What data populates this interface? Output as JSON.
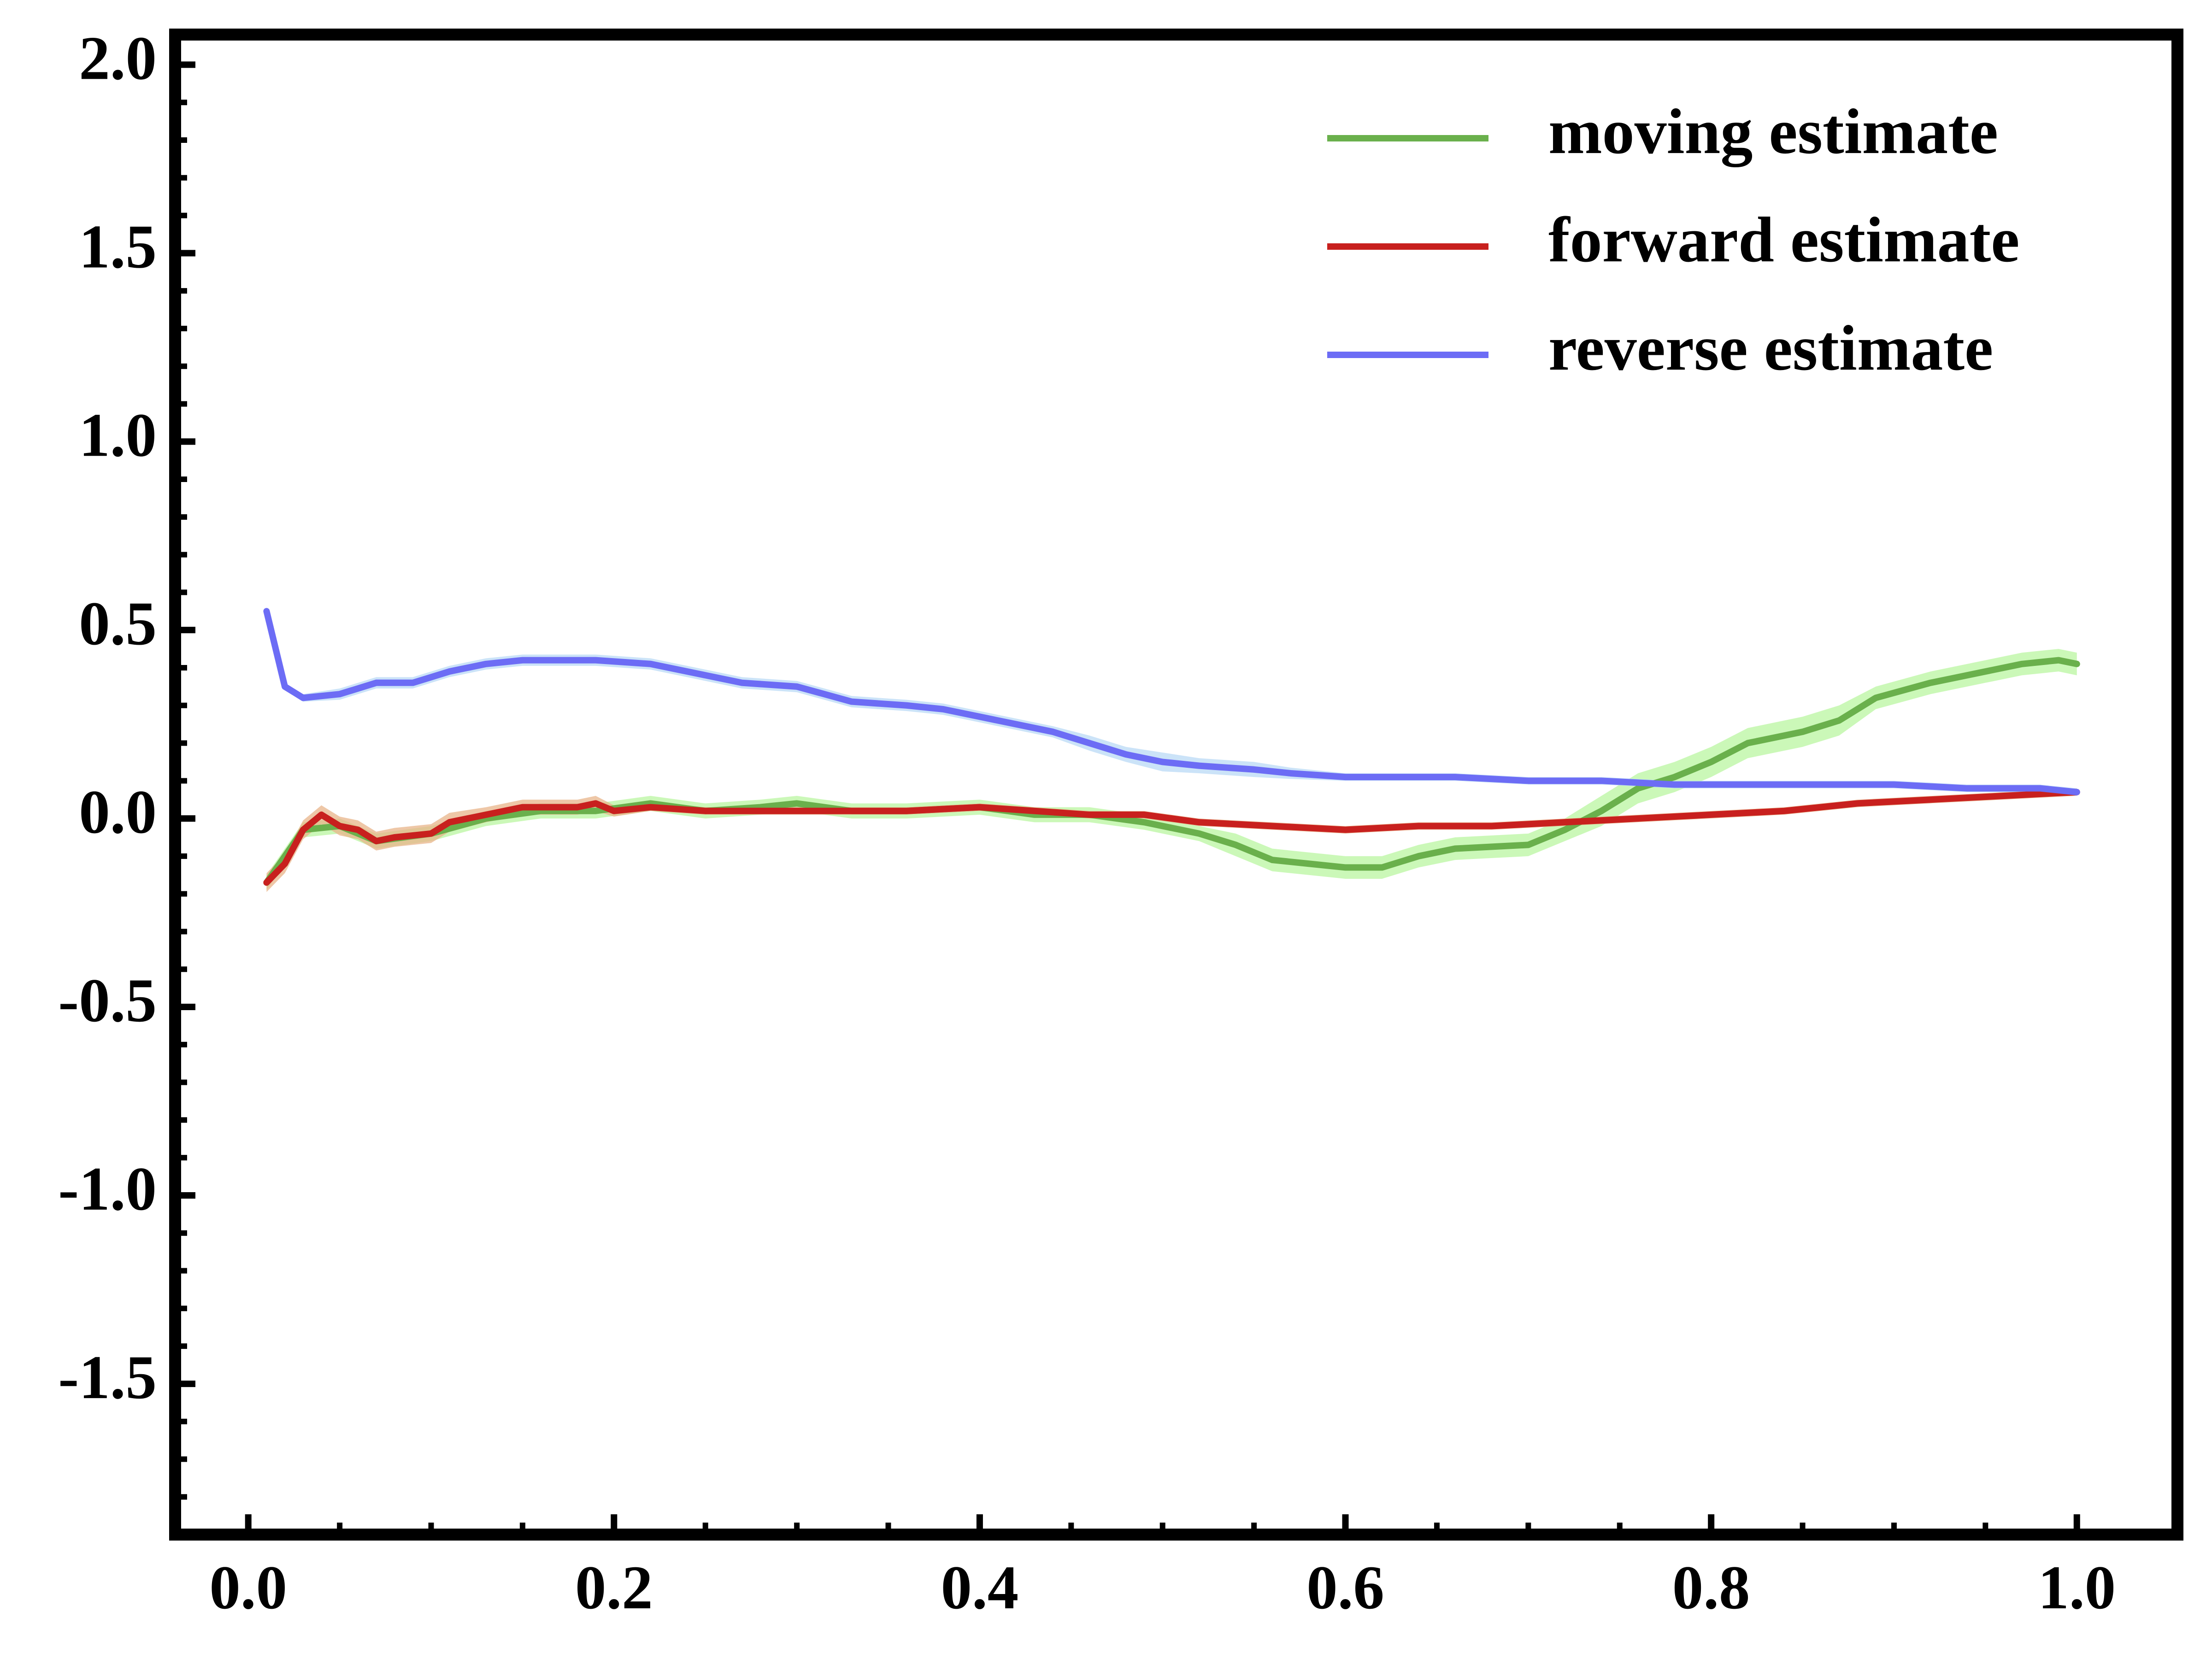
{
  "chart_data": {
    "type": "line",
    "title": "",
    "xlabel": "",
    "ylabel": "",
    "xlim": [
      -0.04,
      1.055
    ],
    "ylim": [
      -1.9,
      2.08
    ],
    "x_ticks": [
      0.0,
      0.2,
      0.4,
      0.6,
      0.8,
      1.0
    ],
    "x_tick_labels": [
      "0.0",
      "0.2",
      "0.4",
      "0.6",
      "0.8",
      "1.0"
    ],
    "y_ticks": [
      2.0,
      1.5,
      1.0,
      0.5,
      0.0,
      -0.5,
      -1.0,
      -1.5
    ],
    "y_tick_labels": [
      "2.0",
      "1.5",
      "1.0",
      "0.5",
      "0.0",
      "-0.5",
      "-1.0",
      "-1.5"
    ],
    "grid": false,
    "legend_position": "top-right",
    "series": [
      {
        "name": "moving estimate",
        "color": "#6ab04c",
        "band_color": "#b9f5a0",
        "x": [
          0.01,
          0.03,
          0.05,
          0.07,
          0.1,
          0.13,
          0.16,
          0.19,
          0.22,
          0.25,
          0.28,
          0.3,
          0.33,
          0.36,
          0.4,
          0.43,
          0.46,
          0.49,
          0.52,
          0.54,
          0.56,
          0.58,
          0.6,
          0.62,
          0.64,
          0.66,
          0.7,
          0.72,
          0.74,
          0.76,
          0.78,
          0.8,
          0.82,
          0.85,
          0.87,
          0.89,
          0.92,
          0.95,
          0.97,
          0.99,
          1.0
        ],
        "y": [
          -0.17,
          -0.03,
          -0.02,
          -0.06,
          -0.04,
          0.0,
          0.02,
          0.02,
          0.04,
          0.02,
          0.03,
          0.04,
          0.02,
          0.02,
          0.03,
          0.01,
          0.01,
          -0.01,
          -0.04,
          -0.07,
          -0.11,
          -0.12,
          -0.13,
          -0.13,
          -0.1,
          -0.08,
          -0.07,
          -0.03,
          0.02,
          0.08,
          0.11,
          0.15,
          0.2,
          0.23,
          0.26,
          0.32,
          0.36,
          0.39,
          0.41,
          0.42,
          0.41
        ],
        "band": [
          0.02,
          0.02,
          0.02,
          0.02,
          0.02,
          0.02,
          0.02,
          0.02,
          0.02,
          0.02,
          0.02,
          0.02,
          0.02,
          0.02,
          0.02,
          0.02,
          0.02,
          0.02,
          0.02,
          0.03,
          0.03,
          0.03,
          0.03,
          0.03,
          0.03,
          0.03,
          0.03,
          0.03,
          0.04,
          0.04,
          0.04,
          0.04,
          0.04,
          0.04,
          0.04,
          0.03,
          0.03,
          0.03,
          0.03,
          0.03,
          0.03
        ]
      },
      {
        "name": "forward estimate",
        "color": "#c8201e",
        "band_color": "#e8b48a",
        "x": [
          0.01,
          0.02,
          0.03,
          0.04,
          0.05,
          0.06,
          0.07,
          0.08,
          0.1,
          0.11,
          0.13,
          0.15,
          0.17,
          0.18,
          0.19,
          0.2,
          0.22,
          0.25,
          0.27,
          0.3,
          0.33,
          0.36,
          0.4,
          0.43,
          0.46,
          0.49,
          0.52,
          0.56,
          0.6,
          0.64,
          0.68,
          0.72,
          0.76,
          0.8,
          0.84,
          0.88,
          0.92,
          0.96,
          1.0
        ],
        "y": [
          -0.17,
          -0.12,
          -0.03,
          0.01,
          -0.02,
          -0.03,
          -0.06,
          -0.05,
          -0.04,
          -0.01,
          0.01,
          0.03,
          0.03,
          0.03,
          0.04,
          0.02,
          0.03,
          0.02,
          0.02,
          0.02,
          0.02,
          0.02,
          0.03,
          0.02,
          0.01,
          0.01,
          -0.01,
          -0.02,
          -0.03,
          -0.02,
          -0.02,
          -0.01,
          0.0,
          0.01,
          0.02,
          0.04,
          0.05,
          0.06,
          0.07
        ],
        "band": [
          0.025,
          0.025,
          0.025,
          0.025,
          0.025,
          0.025,
          0.025,
          0.025,
          0.025,
          0.025,
          0.02,
          0.02,
          0.02,
          0.02,
          0.02,
          0.015,
          0.01,
          0.01,
          0.01,
          0.01,
          0.01,
          0.01,
          0.01,
          0.01,
          0.01,
          0.01,
          0.01,
          0.01,
          0.01,
          0.01,
          0.01,
          0.01,
          0.01,
          0.01,
          0.01,
          0.01,
          0.01,
          0.01,
          0.01
        ]
      },
      {
        "name": "reverse estimate",
        "color": "#6c6cf5",
        "band_color": "#b9d9f5",
        "x": [
          0.01,
          0.02,
          0.03,
          0.05,
          0.07,
          0.09,
          0.11,
          0.13,
          0.15,
          0.17,
          0.19,
          0.22,
          0.25,
          0.27,
          0.3,
          0.33,
          0.36,
          0.38,
          0.4,
          0.42,
          0.44,
          0.46,
          0.48,
          0.5,
          0.52,
          0.55,
          0.57,
          0.6,
          0.63,
          0.66,
          0.7,
          0.74,
          0.78,
          0.82,
          0.86,
          0.9,
          0.94,
          0.98,
          1.0
        ],
        "y": [
          0.55,
          0.35,
          0.32,
          0.33,
          0.36,
          0.36,
          0.39,
          0.41,
          0.42,
          0.42,
          0.42,
          0.41,
          0.38,
          0.36,
          0.35,
          0.31,
          0.3,
          0.29,
          0.27,
          0.25,
          0.23,
          0.2,
          0.17,
          0.15,
          0.14,
          0.13,
          0.12,
          0.11,
          0.11,
          0.11,
          0.1,
          0.1,
          0.09,
          0.09,
          0.09,
          0.09,
          0.08,
          0.08,
          0.07
        ],
        "band": [
          0.01,
          0.01,
          0.01,
          0.015,
          0.015,
          0.015,
          0.015,
          0.015,
          0.015,
          0.015,
          0.015,
          0.015,
          0.015,
          0.015,
          0.015,
          0.015,
          0.015,
          0.015,
          0.015,
          0.015,
          0.015,
          0.02,
          0.02,
          0.025,
          0.02,
          0.02,
          0.015,
          0.01,
          0.01,
          0.01,
          0.01,
          0.01,
          0.01,
          0.01,
          0.01,
          0.01,
          0.01,
          0.01,
          0.01
        ]
      }
    ]
  }
}
